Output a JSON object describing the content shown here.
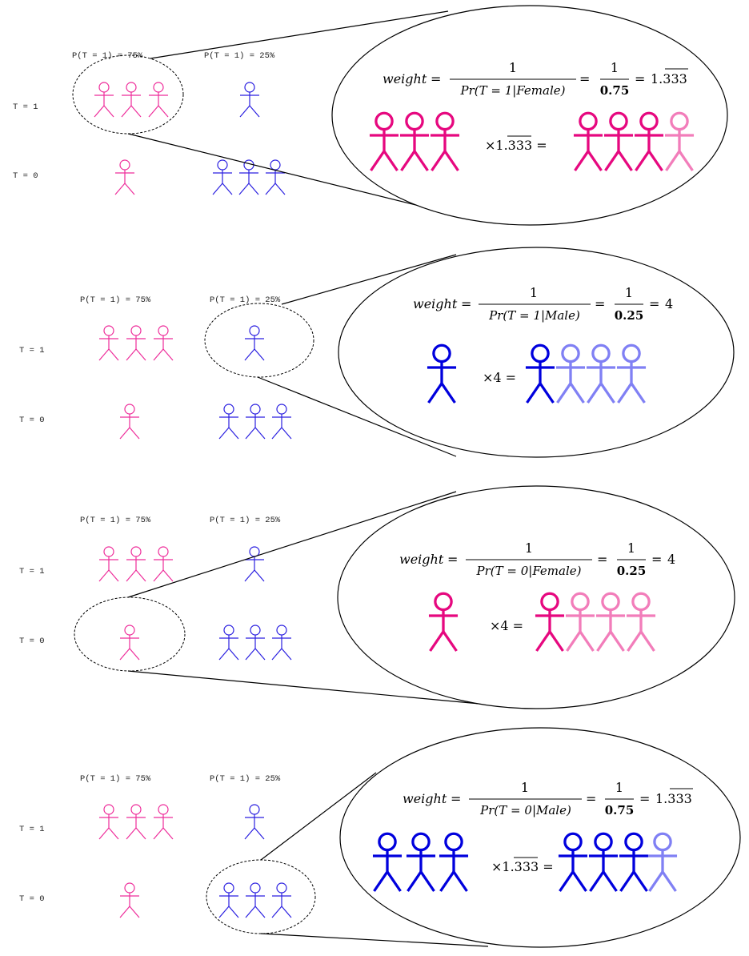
{
  "colors": {
    "female": "#ee2c9a",
    "female_big": "#e6087f",
    "female_light": "#f27dba",
    "male": "#2a1fe0",
    "male_big": "#0000dd",
    "male_light": "#8080f4",
    "line": "#000000"
  },
  "icon": "stick-figure-icon",
  "panels": [
    {
      "prob_female": "P(T = 1) = 75%",
      "prob_male": "P(T = 1) = 25%",
      "row_t1": "T = 1",
      "row_t0": "T = 0",
      "formula": {
        "lhs": "weight",
        "eq1": "=",
        "num1": "1",
        "den1": "Pr(T = 1|Female)",
        "eq2": "=",
        "num2": "1",
        "den2": "0.75",
        "eq3": "=",
        "result": "1.333"
      },
      "multiplier": "×1.333 =",
      "group_size": 3,
      "result_count": 4,
      "figure_color": "female"
    },
    {
      "prob_female": "P(T = 1) = 75%",
      "prob_male": "P(T = 1) = 25%",
      "row_t1": "T = 1",
      "row_t0": "T = 0",
      "formula": {
        "lhs": "weight",
        "eq1": "=",
        "num1": "1",
        "den1": "Pr(T = 1|Male)",
        "eq2": "=",
        "num2": "1",
        "den2": "0.25",
        "eq3": "=",
        "result": "4"
      },
      "multiplier": "×4 =",
      "group_size": 1,
      "result_count": 4,
      "figure_color": "male"
    },
    {
      "prob_female": "P(T = 1) = 75%",
      "prob_male": "P(T = 1) = 25%",
      "row_t1": "T = 1",
      "row_t0": "T = 0",
      "formula": {
        "lhs": "weight",
        "eq1": "=",
        "num1": "1",
        "den1": "Pr(T = 0|Female)",
        "eq2": "=",
        "num2": "1",
        "den2": "0.25",
        "eq3": "=",
        "result": "4"
      },
      "multiplier": "×4 =",
      "group_size": 1,
      "result_count": 4,
      "figure_color": "female"
    },
    {
      "prob_female": "P(T = 1) = 75%",
      "prob_male": "P(T = 1) = 25%",
      "row_t1": "T = 1",
      "row_t0": "T = 0",
      "formula": {
        "lhs": "weight",
        "eq1": "=",
        "num1": "1",
        "den1": "Pr(T = 0|Male)",
        "eq2": "=",
        "num2": "1",
        "den2": "0.75",
        "eq3": "=",
        "result": "1.333"
      },
      "multiplier": "×1.333 =",
      "group_size": 3,
      "result_count": 4,
      "figure_color": "male"
    }
  ]
}
